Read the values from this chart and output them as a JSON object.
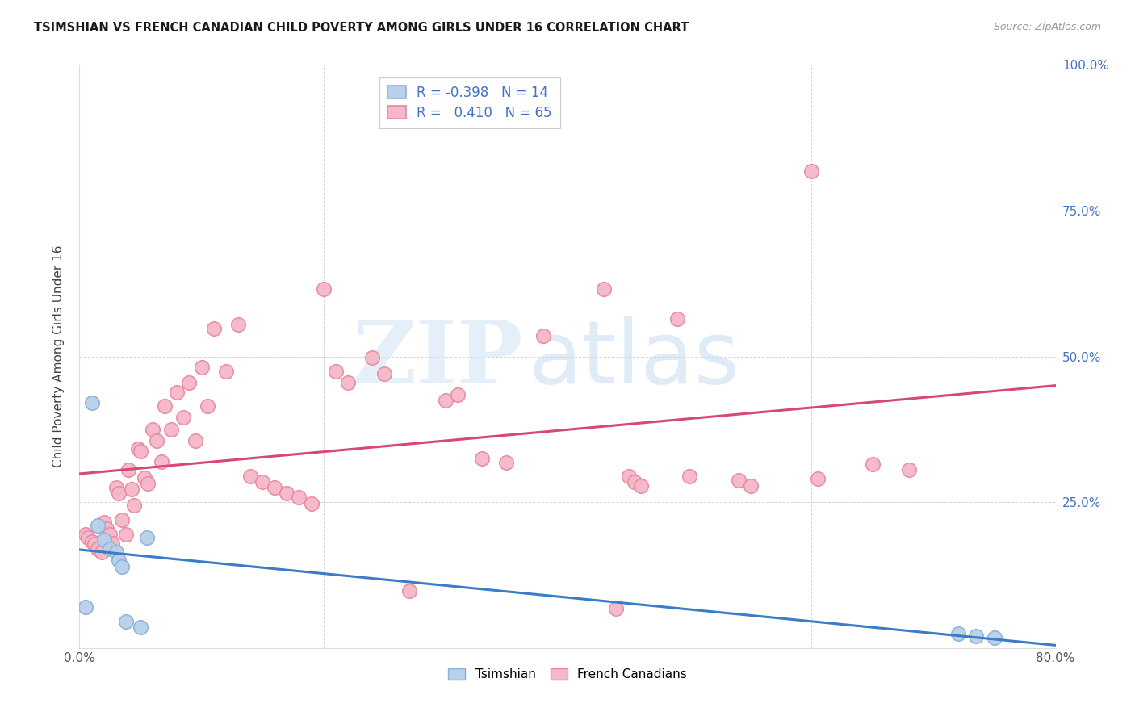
{
  "title": "TSIMSHIAN VS FRENCH CANADIAN CHILD POVERTY AMONG GIRLS UNDER 16 CORRELATION CHART",
  "source": "Source: ZipAtlas.com",
  "ylabel": "Child Poverty Among Girls Under 16",
  "xlim": [
    0.0,
    0.8
  ],
  "ylim": [
    0.0,
    1.0
  ],
  "xticks": [
    0.0,
    0.2,
    0.4,
    0.6,
    0.8
  ],
  "xtick_labels": [
    "0.0%",
    "",
    "",
    "",
    "80.0%"
  ],
  "yticks": [
    0.0,
    0.25,
    0.5,
    0.75,
    1.0
  ],
  "right_ytick_labels": [
    "",
    "25.0%",
    "50.0%",
    "75.0%",
    "100.0%"
  ],
  "tsimshian_color": "#b8d0ea",
  "french_color": "#f5b8c8",
  "tsimshian_edge": "#8ab0d8",
  "french_edge": "#e888a0",
  "regression_tsimshian_color": "#3a7cc8",
  "regression_french_color": "#d84870",
  "legend_R_tsimshian": "-0.398",
  "legend_N_tsimshian": "14",
  "legend_R_french": "0.410",
  "legend_N_french": "65",
  "tsimshian_x": [
    0.005,
    0.01,
    0.015,
    0.02,
    0.025,
    0.03,
    0.032,
    0.035,
    0.038,
    0.05,
    0.055,
    0.72,
    0.735,
    0.75
  ],
  "tsimshian_y": [
    0.07,
    0.42,
    0.21,
    0.185,
    0.17,
    0.165,
    0.15,
    0.14,
    0.045,
    0.036,
    0.19,
    0.025,
    0.02,
    0.018
  ],
  "french_x": [
    0.005,
    0.007,
    0.01,
    0.012,
    0.015,
    0.018,
    0.02,
    0.022,
    0.025,
    0.027,
    0.03,
    0.032,
    0.035,
    0.038,
    0.04,
    0.043,
    0.045,
    0.048,
    0.05,
    0.053,
    0.056,
    0.06,
    0.063,
    0.067,
    0.07,
    0.075,
    0.08,
    0.085,
    0.09,
    0.095,
    0.1,
    0.105,
    0.11,
    0.12,
    0.13,
    0.14,
    0.15,
    0.16,
    0.17,
    0.18,
    0.19,
    0.2,
    0.21,
    0.22,
    0.24,
    0.25,
    0.27,
    0.3,
    0.31,
    0.33,
    0.35,
    0.38,
    0.43,
    0.44,
    0.45,
    0.455,
    0.46,
    0.49,
    0.5,
    0.54,
    0.55,
    0.6,
    0.605,
    0.65,
    0.68
  ],
  "french_y": [
    0.195,
    0.19,
    0.182,
    0.178,
    0.17,
    0.165,
    0.215,
    0.205,
    0.195,
    0.18,
    0.275,
    0.265,
    0.22,
    0.195,
    0.305,
    0.272,
    0.245,
    0.342,
    0.338,
    0.292,
    0.282,
    0.375,
    0.355,
    0.32,
    0.415,
    0.375,
    0.438,
    0.395,
    0.455,
    0.355,
    0.482,
    0.415,
    0.548,
    0.475,
    0.555,
    0.295,
    0.285,
    0.275,
    0.265,
    0.258,
    0.248,
    0.615,
    0.475,
    0.455,
    0.498,
    0.47,
    0.098,
    0.425,
    0.435,
    0.325,
    0.318,
    0.535,
    0.615,
    0.068,
    0.295,
    0.285,
    0.278,
    0.565,
    0.295,
    0.288,
    0.278,
    0.818,
    0.29,
    0.315,
    0.305
  ]
}
